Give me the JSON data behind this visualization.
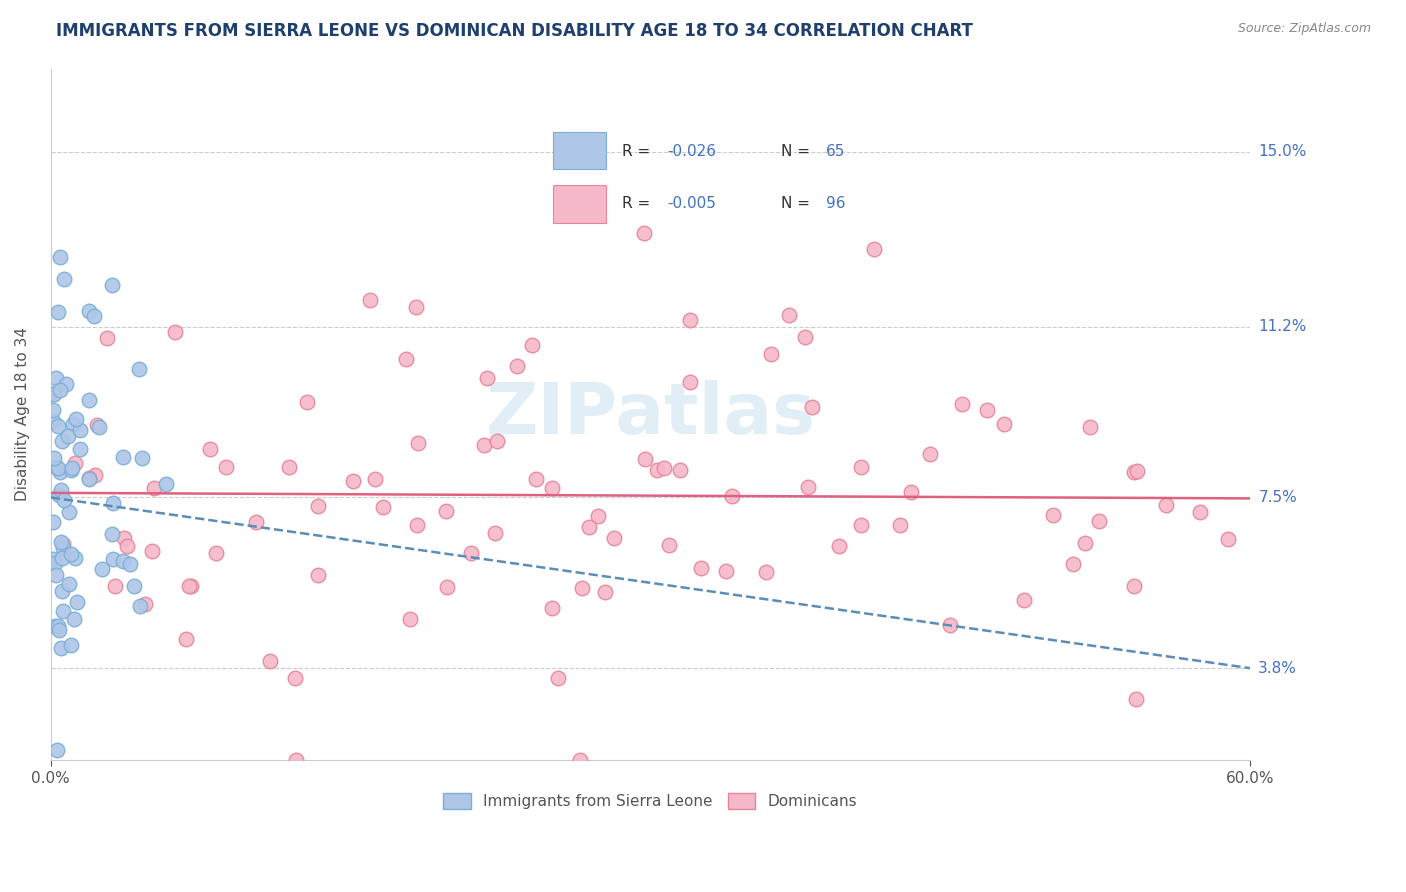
{
  "title": "IMMIGRANTS FROM SIERRA LEONE VS DOMINICAN DISABILITY AGE 18 TO 34 CORRELATION CHART",
  "source": "Source: ZipAtlas.com",
  "ylabel": "Disability Age 18 to 34",
  "ytick_labels": [
    "3.8%",
    "7.5%",
    "11.2%",
    "15.0%"
  ],
  "ytick_values": [
    0.038,
    0.075,
    0.112,
    0.15
  ],
  "xtick_labels": [
    "0.0%",
    "60.0%"
  ],
  "xtick_values": [
    0.0,
    0.6
  ],
  "xmin": 0.0,
  "xmax": 0.6,
  "ymin": 0.018,
  "ymax": 0.168,
  "sierra_leone_R": -0.026,
  "sierra_leone_N": 65,
  "dominican_R": -0.005,
  "dominican_N": 96,
  "sierra_leone_color": "#aec6e8",
  "sierra_leone_edge_color": "#7aafd4",
  "sierra_leone_line_color": "#5b8db8",
  "dominican_color": "#f5b8c8",
  "dominican_edge_color": "#e8849a",
  "dominican_line_color": "#e06080",
  "text_color_blue": "#4472c4",
  "text_color_black": "#333333",
  "legend_label_1": "Immigrants from Sierra Leone",
  "legend_label_2": "Dominicans",
  "grid_color": "#cccccc",
  "title_color": "#1f3f6e",
  "watermark_text": "ZIPatlas",
  "watermark_color": "#d0e4f0"
}
